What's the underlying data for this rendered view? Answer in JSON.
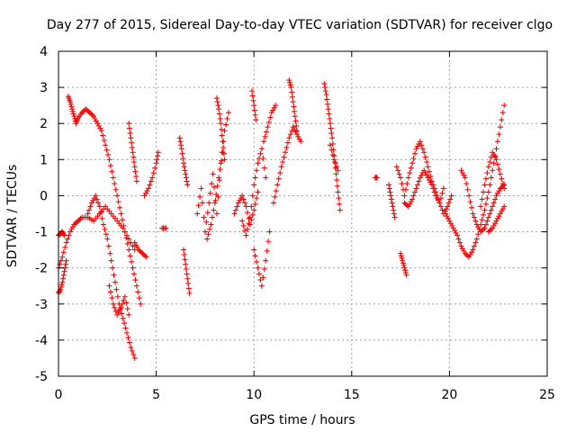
{
  "chart_data": {
    "type": "scatter",
    "title": "Day 277 of 2015, Sidereal Day-to-day VTEC variation (SDTVAR) for receiver clgo",
    "xlabel": "GPS time / hours",
    "ylabel": "SDTVAR / TECUs",
    "xlim": [
      0,
      25
    ],
    "ylim": [
      -5,
      4
    ],
    "xticks": [
      0,
      5,
      10,
      15,
      20,
      25
    ],
    "yticks": [
      -5,
      -4,
      -3,
      -2,
      -1,
      0,
      1,
      2,
      3,
      4
    ],
    "grid": true,
    "marker": "plus",
    "color": "#ff0000",
    "tracks": [
      {
        "name": "track-1",
        "x": [
          0.0,
          0.1,
          0.2,
          0.3,
          0.4
        ],
        "y": [
          -2.7,
          -2.6,
          -2.4,
          -2.1,
          -1.8
        ]
      },
      {
        "name": "track-2",
        "x": [
          0.0,
          0.1,
          0.2,
          0.3
        ],
        "y": [
          -1.1,
          -1.05,
          -1.0,
          -1.1
        ]
      },
      {
        "name": "track-3",
        "x": [
          0.0,
          0.2,
          0.4,
          0.6,
          0.8,
          1.0,
          1.2,
          1.5,
          1.8,
          2.1,
          2.4,
          2.7,
          3.0,
          3.3,
          3.6,
          3.9
        ],
        "y": [
          -2.0,
          -1.7,
          -1.3,
          -1.0,
          -0.8,
          -0.7,
          -0.6,
          -0.6,
          -0.7,
          -0.5,
          -0.3,
          -0.5,
          -0.7,
          -0.9,
          -1.2,
          -1.5
        ]
      },
      {
        "name": "track-4",
        "x": [
          0.5,
          0.6,
          0.7,
          0.8,
          0.9,
          1.0,
          1.2,
          1.4,
          1.6,
          1.8,
          2.0,
          2.2,
          2.4,
          2.6,
          2.8,
          3.0,
          3.2,
          3.4,
          3.6,
          3.8,
          4.0,
          4.2
        ],
        "y": [
          2.75,
          2.6,
          2.4,
          2.2,
          2.0,
          2.15,
          2.3,
          2.4,
          2.3,
          2.2,
          2.0,
          1.8,
          1.4,
          1.0,
          0.5,
          0.0,
          -0.5,
          -1.0,
          -1.5,
          -2.0,
          -2.5,
          -3.0
        ]
      },
      {
        "name": "track-5",
        "x": [
          1.5,
          1.7,
          1.9,
          2.1,
          2.3,
          2.5,
          2.7,
          2.9,
          3.1,
          3.3,
          3.5,
          3.7,
          3.9
        ],
        "y": [
          -0.5,
          -0.2,
          0.0,
          -0.3,
          -0.8,
          -1.2,
          -1.8,
          -2.4,
          -3.0,
          -3.4,
          -3.8,
          -4.2,
          -4.5
        ]
      },
      {
        "name": "track-6",
        "x": [
          2.6,
          2.8,
          3.0,
          3.2,
          3.4,
          3.6
        ],
        "y": [
          -2.5,
          -3.0,
          -3.3,
          -3.1,
          -2.8,
          -3.3
        ]
      },
      {
        "name": "track-7",
        "x": [
          3.6,
          3.7,
          3.8,
          3.9,
          4.0
        ],
        "y": [
          2.0,
          1.6,
          1.2,
          0.8,
          0.4
        ]
      },
      {
        "name": "track-8",
        "x": [
          3.9,
          4.1,
          4.3,
          4.5
        ],
        "y": [
          -1.3,
          -1.5,
          -1.6,
          -1.7
        ]
      },
      {
        "name": "track-9",
        "x": [
          4.4,
          4.6,
          4.8,
          5.0,
          5.1
        ],
        "y": [
          0.0,
          0.2,
          0.5,
          0.9,
          1.2
        ]
      },
      {
        "name": "track-10",
        "x": [
          5.3,
          5.5
        ],
        "y": [
          -0.9,
          -0.9
        ]
      },
      {
        "name": "track-11",
        "x": [
          6.2,
          6.3,
          6.4,
          6.5,
          6.6
        ],
        "y": [
          1.6,
          1.3,
          0.9,
          0.6,
          0.3
        ]
      },
      {
        "name": "track-12",
        "x": [
          6.4,
          6.5,
          6.6,
          6.7
        ],
        "y": [
          -1.5,
          -1.9,
          -2.3,
          -2.7
        ]
      },
      {
        "name": "track-13",
        "x": [
          7.1,
          7.3,
          7.5,
          7.7,
          7.9,
          8.1,
          8.3,
          8.5,
          8.7
        ],
        "y": [
          -0.5,
          0.2,
          -1.0,
          -0.2,
          0.6,
          -0.5,
          0.9,
          1.8,
          2.3
        ]
      },
      {
        "name": "track-14",
        "x": [
          7.6,
          7.8,
          8.0,
          8.2,
          8.4
        ],
        "y": [
          -1.2,
          -0.8,
          -0.2,
          0.5,
          1.2
        ]
      },
      {
        "name": "track-15",
        "x": [
          8.1,
          8.2,
          8.3,
          8.4,
          8.5
        ],
        "y": [
          2.7,
          2.4,
          2.0,
          1.5,
          1.0
        ]
      },
      {
        "name": "track-16",
        "x": [
          9.0,
          9.2,
          9.4,
          9.6,
          9.8,
          10.0,
          10.2
        ],
        "y": [
          -0.5,
          -0.2,
          0.0,
          -0.3,
          -0.8,
          -0.4,
          0.1
        ]
      },
      {
        "name": "track-17",
        "x": [
          9.4,
          9.6,
          9.8,
          10.0,
          10.2,
          10.4,
          10.6
        ],
        "y": [
          -0.7,
          -1.1,
          -0.6,
          0.3,
          0.9,
          1.3,
          0.5
        ]
      },
      {
        "name": "track-18",
        "x": [
          9.9,
          10.0,
          10.1
        ],
        "y": [
          2.9,
          2.5,
          2.1
        ]
      },
      {
        "name": "track-19",
        "x": [
          10.0,
          10.2,
          10.4,
          10.6,
          10.8
        ],
        "y": [
          -1.5,
          -2.0,
          -2.5,
          -1.8,
          -1.0
        ]
      },
      {
        "name": "track-20",
        "x": [
          10.5,
          10.7,
          10.9,
          11.1
        ],
        "y": [
          1.5,
          1.9,
          2.3,
          2.5
        ]
      },
      {
        "name": "track-21",
        "x": [
          11.0,
          11.2,
          11.4,
          11.6,
          11.8,
          12.0,
          12.2,
          12.4
        ],
        "y": [
          -0.2,
          0.3,
          0.8,
          1.2,
          1.6,
          1.9,
          1.7,
          1.5
        ]
      },
      {
        "name": "track-22",
        "x": [
          11.8,
          11.9,
          12.0,
          12.1,
          12.2
        ],
        "y": [
          3.2,
          3.0,
          2.6,
          2.2,
          1.8
        ]
      },
      {
        "name": "track-23",
        "x": [
          13.6,
          13.7,
          13.8,
          13.9,
          14.0,
          14.1,
          14.2,
          14.3,
          14.4
        ],
        "y": [
          3.1,
          2.8,
          2.4,
          2.0,
          1.6,
          1.1,
          0.6,
          0.1,
          -0.4
        ]
      },
      {
        "name": "track-24",
        "x": [
          13.9,
          14.1,
          14.3
        ],
        "y": [
          1.4,
          1.0,
          0.7
        ]
      },
      {
        "name": "track-25",
        "x": [
          16.2,
          16.3
        ],
        "y": [
          0.5,
          0.5
        ]
      },
      {
        "name": "track-26",
        "x": [
          16.9,
          17.0,
          17.1,
          17.2
        ],
        "y": [
          0.3,
          0.0,
          -0.3,
          -0.6
        ]
      },
      {
        "name": "track-27",
        "x": [
          17.5,
          17.6,
          17.7,
          17.8
        ],
        "y": [
          -1.6,
          -1.8,
          -2.0,
          -2.2
        ]
      },
      {
        "name": "track-28",
        "x": [
          17.3,
          17.5,
          17.7,
          17.9,
          18.1,
          18.3,
          18.5,
          18.7,
          18.9,
          19.1,
          19.3,
          19.5,
          19.7
        ],
        "y": [
          0.8,
          0.5,
          0.0,
          0.5,
          0.9,
          1.3,
          1.5,
          1.2,
          0.8,
          0.4,
          0.1,
          -0.2,
          0.2
        ]
      },
      {
        "name": "track-29",
        "x": [
          17.7,
          17.9,
          18.1,
          18.3,
          18.5,
          18.7,
          18.9,
          19.1,
          19.3,
          19.5,
          19.7,
          19.9,
          20.1
        ],
        "y": [
          -0.2,
          -0.3,
          -0.1,
          0.2,
          0.5,
          0.7,
          0.5,
          0.3,
          0.0,
          -0.2,
          -0.5,
          -0.3,
          0.0
        ]
      },
      {
        "name": "track-30",
        "x": [
          19.8,
          20.0,
          20.2,
          20.4,
          20.6,
          20.8,
          21.0,
          21.2,
          21.4,
          21.6,
          21.8,
          22.0,
          22.2,
          22.4,
          22.6,
          22.8
        ],
        "y": [
          -0.5,
          -0.7,
          -0.9,
          -1.1,
          -1.4,
          -1.6,
          -1.7,
          -1.5,
          -1.2,
          -0.8,
          -0.4,
          0.1,
          0.7,
          1.3,
          1.9,
          2.5
        ]
      },
      {
        "name": "track-31",
        "x": [
          20.6,
          20.8,
          21.0,
          21.2,
          21.4,
          21.6,
          21.8,
          22.0,
          22.2,
          22.4,
          22.6,
          22.8
        ],
        "y": [
          0.7,
          0.5,
          0.0,
          -0.5,
          -0.8,
          -1.0,
          -0.9,
          -0.6,
          -0.3,
          0.0,
          0.2,
          0.3
        ]
      },
      {
        "name": "track-32",
        "x": [
          21.6,
          21.8,
          22.0,
          22.2,
          22.4,
          22.6,
          22.8
        ],
        "y": [
          -0.3,
          0.3,
          0.8,
          1.2,
          1.0,
          0.6,
          0.2
        ]
      },
      {
        "name": "track-33",
        "x": [
          22.0,
          22.2,
          22.4,
          22.6,
          22.8
        ],
        "y": [
          -1.0,
          -0.9,
          -0.7,
          -0.5,
          -0.3
        ]
      }
    ]
  }
}
